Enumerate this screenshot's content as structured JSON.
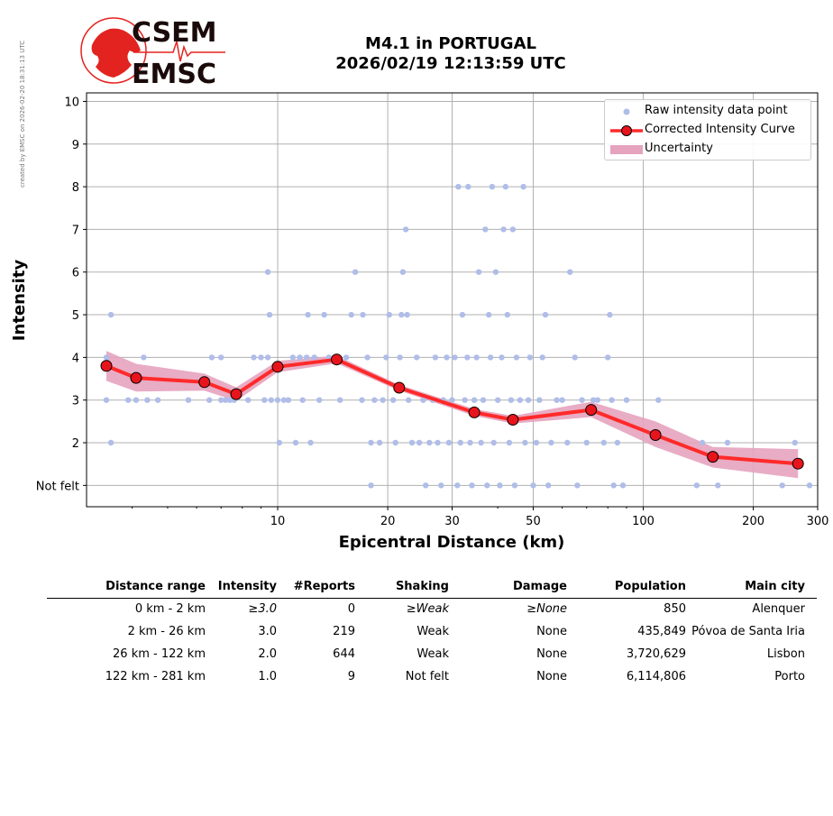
{
  "credit": "created by EMSC on 2026-02-20 18:31:13 UTC",
  "logo": {
    "line1": "CSEM",
    "line2": "EMSC",
    "accent": "#e3231f"
  },
  "title": {
    "line1": "M4.1 in PORTUGAL",
    "line2": "2026/02/19 12:13:59 UTC"
  },
  "chart_data": {
    "type": "scatter",
    "xlabel": "Epicentral Distance (km)",
    "ylabel": "Intensity",
    "x_scale": "log",
    "xlim": [
      3.0,
      300
    ],
    "ylim": [
      0.5,
      10.2
    ],
    "x_ticks": [
      10,
      20,
      30,
      50,
      100,
      200,
      300
    ],
    "y_ticks": [
      {
        "value": 1,
        "label": "Not felt"
      },
      {
        "value": 2,
        "label": "2"
      },
      {
        "value": 3,
        "label": "3"
      },
      {
        "value": 4,
        "label": "4"
      },
      {
        "value": 5,
        "label": "5"
      },
      {
        "value": 6,
        "label": "6"
      },
      {
        "value": 7,
        "label": "7"
      },
      {
        "value": 8,
        "label": "8"
      },
      {
        "value": 9,
        "label": "9"
      },
      {
        "value": 10,
        "label": "10"
      }
    ],
    "grid": true,
    "legend_position": "top-right",
    "colors": {
      "raw": "#b0bde8",
      "curve": "#ff2a2a",
      "marker": "#e8141c",
      "band": "#e6a3be",
      "grid": "#b0b0b0"
    },
    "legend": [
      "Raw intensity data point",
      "Corrected Intensity Curve",
      "Uncertainty"
    ],
    "raw_points": [
      [
        3.4,
        4
      ],
      [
        3.5,
        5
      ],
      [
        3.5,
        2
      ],
      [
        3.4,
        3
      ],
      [
        3.9,
        3
      ],
      [
        4.1,
        3
      ],
      [
        4.3,
        4
      ],
      [
        4.4,
        3
      ],
      [
        4.7,
        3
      ],
      [
        5.7,
        3
      ],
      [
        6.5,
        3
      ],
      [
        6.6,
        4
      ],
      [
        7.0,
        4
      ],
      [
        7.0,
        3
      ],
      [
        7.2,
        3
      ],
      [
        7.4,
        3
      ],
      [
        7.6,
        3
      ],
      [
        8.3,
        3
      ],
      [
        8.6,
        4
      ],
      [
        9.0,
        4
      ],
      [
        9.2,
        3
      ],
      [
        9.4,
        4
      ],
      [
        9.4,
        6
      ],
      [
        9.5,
        5
      ],
      [
        9.6,
        3
      ],
      [
        10.0,
        3
      ],
      [
        10.1,
        2
      ],
      [
        10.4,
        3
      ],
      [
        10.7,
        3
      ],
      [
        11.0,
        4
      ],
      [
        11.2,
        2
      ],
      [
        11.5,
        4
      ],
      [
        11.7,
        3
      ],
      [
        12.0,
        4
      ],
      [
        12.1,
        5
      ],
      [
        12.3,
        2
      ],
      [
        12.6,
        4
      ],
      [
        13.0,
        3
      ],
      [
        13.4,
        5
      ],
      [
        13.8,
        4
      ],
      [
        14.3,
        4
      ],
      [
        14.8,
        3
      ],
      [
        15.4,
        4
      ],
      [
        15.9,
        5
      ],
      [
        16.3,
        6
      ],
      [
        17.0,
        3
      ],
      [
        17.1,
        5
      ],
      [
        17.6,
        4
      ],
      [
        18.0,
        1
      ],
      [
        18.0,
        2
      ],
      [
        18.4,
        3
      ],
      [
        19.0,
        2
      ],
      [
        19.4,
        3
      ],
      [
        19.8,
        4
      ],
      [
        20.2,
        5
      ],
      [
        20.7,
        3
      ],
      [
        21.0,
        2
      ],
      [
        21.6,
        4
      ],
      [
        21.8,
        5
      ],
      [
        22.0,
        6
      ],
      [
        22.4,
        7
      ],
      [
        22.6,
        5
      ],
      [
        22.8,
        3
      ],
      [
        23.3,
        2
      ],
      [
        24.0,
        4
      ],
      [
        24.4,
        2
      ],
      [
        25.0,
        3
      ],
      [
        25.4,
        1
      ],
      [
        26.0,
        2
      ],
      [
        26.5,
        3
      ],
      [
        27.0,
        4
      ],
      [
        27.4,
        2
      ],
      [
        28.0,
        1
      ],
      [
        28.4,
        3
      ],
      [
        29.0,
        4
      ],
      [
        29.4,
        2
      ],
      [
        30.0,
        3
      ],
      [
        30.5,
        4
      ],
      [
        31.0,
        1
      ],
      [
        31.2,
        8
      ],
      [
        31.6,
        2
      ],
      [
        32.0,
        5
      ],
      [
        32.5,
        3
      ],
      [
        33.0,
        4
      ],
      [
        33.2,
        8
      ],
      [
        33.6,
        2
      ],
      [
        34.0,
        1
      ],
      [
        34.5,
        3
      ],
      [
        35.0,
        4
      ],
      [
        35.5,
        6
      ],
      [
        36.0,
        2
      ],
      [
        36.5,
        3
      ],
      [
        37.0,
        7
      ],
      [
        37.4,
        1
      ],
      [
        37.8,
        5
      ],
      [
        38.2,
        4
      ],
      [
        38.6,
        8
      ],
      [
        39.0,
        2
      ],
      [
        39.5,
        6
      ],
      [
        40.0,
        3
      ],
      [
        40.5,
        1
      ],
      [
        41.0,
        4
      ],
      [
        41.5,
        7
      ],
      [
        42.0,
        8
      ],
      [
        42.5,
        5
      ],
      [
        43.0,
        2
      ],
      [
        43.5,
        3
      ],
      [
        44.0,
        7
      ],
      [
        44.5,
        1
      ],
      [
        45.0,
        4
      ],
      [
        46.0,
        3
      ],
      [
        47.0,
        8
      ],
      [
        47.5,
        2
      ],
      [
        48.5,
        3
      ],
      [
        49.0,
        4
      ],
      [
        50.0,
        1
      ],
      [
        51.0,
        2
      ],
      [
        52.0,
        3
      ],
      [
        53.0,
        4
      ],
      [
        54.0,
        5
      ],
      [
        55.0,
        1
      ],
      [
        56.0,
        2
      ],
      [
        58.0,
        3
      ],
      [
        60.0,
        3
      ],
      [
        62.0,
        2
      ],
      [
        63.0,
        6
      ],
      [
        65.0,
        4
      ],
      [
        66.0,
        1
      ],
      [
        68.0,
        3
      ],
      [
        70.0,
        2
      ],
      [
        73.0,
        3
      ],
      [
        75.0,
        3
      ],
      [
        78.0,
        2
      ],
      [
        80.0,
        4
      ],
      [
        81.0,
        5
      ],
      [
        82.0,
        3
      ],
      [
        83.0,
        1
      ],
      [
        85.0,
        2
      ],
      [
        88.0,
        1
      ],
      [
        90.0,
        3
      ],
      [
        110.0,
        3
      ],
      [
        140.0,
        1
      ],
      [
        145.0,
        2
      ],
      [
        160.0,
        1
      ],
      [
        170.0,
        2
      ],
      [
        240.0,
        1
      ],
      [
        260.0,
        2
      ],
      [
        285.0,
        1
      ]
    ],
    "curve": [
      {
        "x": 3.4,
        "y": 3.8,
        "lo": 3.45,
        "hi": 4.15
      },
      {
        "x": 4.1,
        "y": 3.52,
        "lo": 3.2,
        "hi": 3.85
      },
      {
        "x": 6.3,
        "y": 3.42,
        "lo": 3.22,
        "hi": 3.62
      },
      {
        "x": 7.7,
        "y": 3.14,
        "lo": 2.98,
        "hi": 3.3
      },
      {
        "x": 10.0,
        "y": 3.78,
        "lo": 3.65,
        "hi": 3.92
      },
      {
        "x": 14.5,
        "y": 3.95,
        "lo": 3.86,
        "hi": 4.04
      },
      {
        "x": 21.5,
        "y": 3.29,
        "lo": 3.22,
        "hi": 3.36
      },
      {
        "x": 34.5,
        "y": 2.71,
        "lo": 2.63,
        "hi": 2.79
      },
      {
        "x": 44.0,
        "y": 2.54,
        "lo": 2.45,
        "hi": 2.63
      },
      {
        "x": 72.0,
        "y": 2.77,
        "lo": 2.6,
        "hi": 2.96
      },
      {
        "x": 108.0,
        "y": 2.18,
        "lo": 1.9,
        "hi": 2.5
      },
      {
        "x": 155.0,
        "y": 1.67,
        "lo": 1.42,
        "hi": 1.9
      },
      {
        "x": 265.0,
        "y": 1.51,
        "lo": 1.17,
        "hi": 1.85
      }
    ]
  },
  "table": {
    "headers": [
      "Distance range",
      "Intensity",
      "#Reports",
      "Shaking",
      "Damage",
      "Population",
      "Main city"
    ],
    "rows": [
      {
        "range": "0 km -    2 km",
        "intensity": "≥3.0",
        "reports": "0",
        "shaking": "≥Weak",
        "damage": "≥None",
        "population": "850",
        "city": "Alenquer"
      },
      {
        "range": "2 km -   26 km",
        "intensity": "3.0",
        "reports": "219",
        "shaking": "Weak",
        "damage": "None",
        "population": "435,849",
        "city": "Póvoa de Santa Iria"
      },
      {
        "range": "26 km -  122 km",
        "intensity": "2.0",
        "reports": "644",
        "shaking": "Weak",
        "damage": "None",
        "population": "3,720,629",
        "city": "Lisbon"
      },
      {
        "range": "122 km -  281 km",
        "intensity": "1.0",
        "reports": "9",
        "shaking": "Not felt",
        "damage": "None",
        "population": "6,114,806",
        "city": "Porto"
      }
    ]
  }
}
